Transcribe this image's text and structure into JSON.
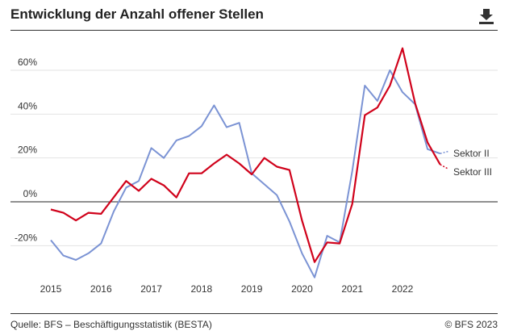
{
  "header": {
    "title": "Entwicklung der Anzahl offener Stellen"
  },
  "toolbar": {
    "download_icon": "download-icon"
  },
  "footer": {
    "source": "Quelle: BFS – Beschäftigungsstatistik (BESTA)",
    "copyright": "© BFS 2023"
  },
  "colors": {
    "sektor2": "#7b93d4",
    "sektor3": "#d0021b",
    "grid": "#e2e2e2",
    "zero": "#222222"
  },
  "chart_data": {
    "type": "line",
    "title": "Entwicklung der Anzahl offener Stellen",
    "xlabel": "",
    "ylabel": "",
    "x_tick_labels": [
      "2015",
      "2016",
      "2017",
      "2018",
      "2019",
      "2020",
      "2021",
      "2022"
    ],
    "y_tick_labels": [
      "60%",
      "40%",
      "20%",
      "0%",
      "-20%"
    ],
    "y_ticks": [
      60,
      40,
      20,
      0,
      -20
    ],
    "xlim": [
      2015.0,
      2023.0
    ],
    "ylim": [
      -35,
      70
    ],
    "grid": true,
    "legend": "end-of-line labels",
    "x": [
      2015.0,
      2015.25,
      2015.5,
      2015.75,
      2016.0,
      2016.25,
      2016.5,
      2016.75,
      2017.0,
      2017.25,
      2017.5,
      2017.75,
      2018.0,
      2018.25,
      2018.5,
      2018.75,
      2019.0,
      2019.25,
      2019.5,
      2019.75,
      2020.0,
      2020.25,
      2020.5,
      2020.75,
      2021.0,
      2021.25,
      2021.5,
      2021.75,
      2022.0,
      2022.25,
      2022.5,
      2022.75
    ],
    "series": [
      {
        "name": "Sektor II",
        "color": "#7b93d4",
        "values": [
          -17.5,
          -24.5,
          -26.5,
          -23.5,
          -19,
          -4.5,
          6.5,
          9.5,
          24.5,
          20,
          28,
          30,
          34.5,
          44,
          34,
          36,
          13,
          8,
          3,
          -9,
          -23.5,
          -34.5,
          -15.5,
          -18.5,
          14,
          53,
          46,
          60,
          50,
          44.5,
          24,
          22
        ],
        "extension": 23
      },
      {
        "name": "Sektor III",
        "color": "#d0021b",
        "values": [
          -3.5,
          -5,
          -8.5,
          -5,
          -5.5,
          2,
          9.5,
          5,
          10.5,
          7.5,
          2,
          13,
          13,
          17.5,
          21.5,
          17.5,
          12.5,
          20,
          16,
          14.5,
          -8.5,
          -27.5,
          -18.5,
          -19,
          -1,
          39.5,
          43,
          53,
          70,
          45,
          27,
          17
        ],
        "extension": 15
      }
    ]
  }
}
